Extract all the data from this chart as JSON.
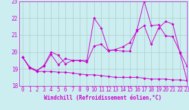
{
  "xlabel": "Windchill (Refroidissement éolien,°C)",
  "xlim": [
    -0.5,
    23
  ],
  "ylim": [
    18,
    23
  ],
  "yticks": [
    18,
    19,
    20,
    21,
    22,
    23
  ],
  "xticks": [
    0,
    1,
    2,
    3,
    4,
    5,
    6,
    7,
    8,
    9,
    10,
    11,
    12,
    13,
    14,
    15,
    16,
    17,
    18,
    19,
    20,
    21,
    22,
    23
  ],
  "background_color": "#cceef0",
  "line_color": "#cc00cc",
  "grid_color": "#aacccc",
  "series1_x": [
    0,
    1,
    2,
    3,
    4,
    5,
    6,
    7,
    8,
    9,
    10,
    11,
    12,
    13,
    14,
    15,
    16,
    17,
    18,
    19,
    20,
    21,
    22,
    23
  ],
  "series1_y": [
    19.7,
    19.1,
    18.9,
    19.2,
    20.0,
    19.8,
    19.3,
    19.5,
    19.5,
    19.5,
    22.0,
    21.4,
    20.1,
    20.1,
    20.05,
    20.05,
    21.3,
    23.0,
    21.55,
    21.6,
    20.95,
    20.9,
    20.0,
    19.15
  ],
  "series2_x": [
    0,
    1,
    2,
    3,
    4,
    5,
    6,
    7,
    8,
    9,
    10,
    11,
    12,
    13,
    14,
    15,
    16,
    17,
    18,
    19,
    20,
    21,
    22,
    23
  ],
  "series2_y": [
    19.7,
    19.1,
    18.9,
    19.15,
    19.85,
    19.25,
    19.6,
    19.5,
    19.5,
    19.4,
    20.35,
    20.45,
    20.05,
    20.15,
    20.3,
    20.55,
    21.25,
    21.55,
    20.45,
    21.4,
    21.8,
    21.65,
    19.95,
    18.3
  ],
  "series3_x": [
    0,
    1,
    2,
    3,
    4,
    5,
    6,
    7,
    8,
    9,
    10,
    11,
    12,
    13,
    14,
    15,
    16,
    17,
    18,
    19,
    20,
    21,
    22,
    23
  ],
  "series3_y": [
    19.7,
    19.05,
    18.85,
    18.85,
    18.85,
    18.8,
    18.8,
    18.75,
    18.7,
    18.65,
    18.65,
    18.6,
    18.55,
    18.5,
    18.5,
    18.5,
    18.5,
    18.45,
    18.4,
    18.4,
    18.4,
    18.35,
    18.35,
    18.3
  ],
  "marker": "D",
  "markersize": 1.8,
  "linewidth": 0.7,
  "tick_fontsize": 5.5,
  "xlabel_fontsize": 5.5
}
